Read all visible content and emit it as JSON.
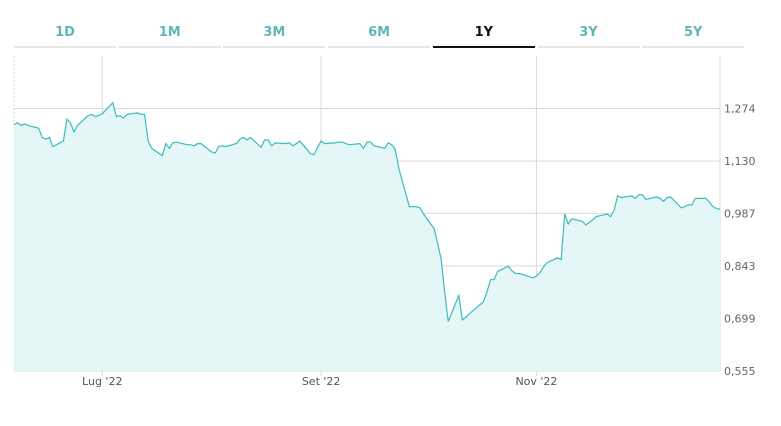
{
  "range_tabs": [
    {
      "label": "1D",
      "active": false
    },
    {
      "label": "1M",
      "active": false
    },
    {
      "label": "3M",
      "active": false
    },
    {
      "label": "6M",
      "active": false
    },
    {
      "label": "1Y",
      "active": true
    },
    {
      "label": "3Y",
      "active": false
    },
    {
      "label": "5Y",
      "active": false
    }
  ],
  "colors": {
    "tab_inactive_text": "#5fb6b6",
    "tab_active_text": "#111111",
    "tab_inactive_bar": "#e6e6e6",
    "tab_active_bar": "#111111",
    "line": "#3cbcbc",
    "fill": "#e4f7f6",
    "grid": "#d9d9d9"
  },
  "chart_data": {
    "type": "area",
    "title": "",
    "xlabel": "",
    "ylabel": "",
    "ylim": [
      0.555,
      1.418
    ],
    "y_ticks": [
      "1,274",
      "1,130",
      "0,987",
      "0,843",
      "0,699",
      "0,555"
    ],
    "y_tick_values": [
      1.274,
      1.13,
      0.987,
      0.843,
      0.699,
      0.555
    ],
    "x_ticks": [
      "Lug '22",
      "Set '22",
      "Nov '22"
    ],
    "x_tick_dates": [
      "2022-07-01",
      "2022-09-01",
      "2022-11-01"
    ],
    "x_range": [
      "2022-06-06",
      "2022-12-23"
    ],
    "grid": true,
    "series": [
      {
        "points": [
          [
            "2022-06-06",
            1.23
          ],
          [
            "2022-06-07",
            1.235
          ],
          [
            "2022-06-08",
            1.228
          ],
          [
            "2022-06-09",
            1.232
          ],
          [
            "2022-06-10",
            1.228
          ],
          [
            "2022-06-13",
            1.22
          ],
          [
            "2022-06-14",
            1.195
          ],
          [
            "2022-06-15",
            1.19
          ],
          [
            "2022-06-16",
            1.195
          ],
          [
            "2022-06-17",
            1.17
          ],
          [
            "2022-06-20",
            1.185
          ],
          [
            "2022-06-21",
            1.245
          ],
          [
            "2022-06-22",
            1.235
          ],
          [
            "2022-06-23",
            1.21
          ],
          [
            "2022-06-24",
            1.228
          ],
          [
            "2022-06-27",
            1.255
          ],
          [
            "2022-06-28",
            1.258
          ],
          [
            "2022-06-29",
            1.252
          ],
          [
            "2022-06-30",
            1.255
          ],
          [
            "2022-07-01",
            1.26
          ],
          [
            "2022-07-04",
            1.29
          ],
          [
            "2022-07-05",
            1.252
          ],
          [
            "2022-07-06",
            1.255
          ],
          [
            "2022-07-07",
            1.248
          ],
          [
            "2022-07-08",
            1.258
          ],
          [
            "2022-07-11",
            1.262
          ],
          [
            "2022-07-12",
            1.258
          ],
          [
            "2022-07-13",
            1.258
          ],
          [
            "2022-07-14",
            1.185
          ],
          [
            "2022-07-15",
            1.165
          ],
          [
            "2022-07-18",
            1.145
          ],
          [
            "2022-07-19",
            1.178
          ],
          [
            "2022-07-20",
            1.165
          ],
          [
            "2022-07-21",
            1.18
          ],
          [
            "2022-07-22",
            1.182
          ],
          [
            "2022-07-25",
            1.175
          ],
          [
            "2022-07-26",
            1.175
          ],
          [
            "2022-07-27",
            1.172
          ],
          [
            "2022-07-28",
            1.178
          ],
          [
            "2022-07-29",
            1.178
          ],
          [
            "2022-08-01",
            1.155
          ],
          [
            "2022-08-02",
            1.152
          ],
          [
            "2022-08-03",
            1.17
          ],
          [
            "2022-08-04",
            1.172
          ],
          [
            "2022-08-05",
            1.17
          ],
          [
            "2022-08-08",
            1.178
          ],
          [
            "2022-08-09",
            1.19
          ],
          [
            "2022-08-10",
            1.195
          ],
          [
            "2022-08-11",
            1.188
          ],
          [
            "2022-08-12",
            1.195
          ],
          [
            "2022-08-15",
            1.168
          ],
          [
            "2022-08-16",
            1.188
          ],
          [
            "2022-08-17",
            1.188
          ],
          [
            "2022-08-18",
            1.172
          ],
          [
            "2022-08-19",
            1.18
          ],
          [
            "2022-08-22",
            1.178
          ],
          [
            "2022-08-23",
            1.18
          ],
          [
            "2022-08-24",
            1.172
          ],
          [
            "2022-08-25",
            1.178
          ],
          [
            "2022-08-26",
            1.185
          ],
          [
            "2022-08-29",
            1.15
          ],
          [
            "2022-08-30",
            1.148
          ],
          [
            "2022-08-31",
            1.168
          ],
          [
            "2022-09-01",
            1.185
          ],
          [
            "2022-09-02",
            1.178
          ],
          [
            "2022-09-05",
            1.18
          ],
          [
            "2022-09-06",
            1.182
          ],
          [
            "2022-09-07",
            1.182
          ],
          [
            "2022-09-08",
            1.178
          ],
          [
            "2022-09-09",
            1.175
          ],
          [
            "2022-09-12",
            1.178
          ],
          [
            "2022-09-13",
            1.165
          ],
          [
            "2022-09-14",
            1.182
          ],
          [
            "2022-09-15",
            1.182
          ],
          [
            "2022-09-16",
            1.172
          ],
          [
            "2022-09-19",
            1.165
          ],
          [
            "2022-09-20",
            1.18
          ],
          [
            "2022-09-21",
            1.175
          ],
          [
            "2022-09-22",
            1.162
          ],
          [
            "2022-09-23",
            1.11
          ],
          [
            "2022-09-26",
            1.005
          ],
          [
            "2022-09-27",
            1.005
          ],
          [
            "2022-09-28",
            1.005
          ],
          [
            "2022-09-29",
            1.002
          ],
          [
            "2022-09-30",
            0.985
          ],
          [
            "2022-10-03",
            0.945
          ],
          [
            "2022-10-04",
            0.905
          ],
          [
            "2022-10-05",
            0.862
          ],
          [
            "2022-10-06",
            0.77
          ],
          [
            "2022-10-07",
            0.69
          ],
          [
            "2022-10-10",
            0.762
          ],
          [
            "2022-10-11",
            0.695
          ],
          [
            "2022-10-12",
            0.702
          ],
          [
            "2022-10-13",
            0.712
          ],
          [
            "2022-10-14",
            0.72
          ],
          [
            "2022-10-17",
            0.745
          ],
          [
            "2022-10-18",
            0.772
          ],
          [
            "2022-10-19",
            0.805
          ],
          [
            "2022-10-20",
            0.805
          ],
          [
            "2022-10-21",
            0.828
          ],
          [
            "2022-10-24",
            0.842
          ],
          [
            "2022-10-25",
            0.83
          ],
          [
            "2022-10-26",
            0.822
          ],
          [
            "2022-10-27",
            0.822
          ],
          [
            "2022-10-28",
            0.82
          ],
          [
            "2022-10-31",
            0.81
          ],
          [
            "2022-11-01",
            0.815
          ],
          [
            "2022-11-02",
            0.825
          ],
          [
            "2022-11-03",
            0.84
          ],
          [
            "2022-11-04",
            0.852
          ],
          [
            "2022-11-07",
            0.865
          ],
          [
            "2022-11-08",
            0.86
          ],
          [
            "2022-11-09",
            0.985
          ],
          [
            "2022-11-10",
            0.958
          ],
          [
            "2022-11-11",
            0.972
          ],
          [
            "2022-11-14",
            0.965
          ],
          [
            "2022-11-15",
            0.955
          ],
          [
            "2022-11-16",
            0.962
          ],
          [
            "2022-11-17",
            0.97
          ],
          [
            "2022-11-18",
            0.978
          ],
          [
            "2022-11-21",
            0.985
          ],
          [
            "2022-11-22",
            0.978
          ],
          [
            "2022-11-23",
            0.995
          ],
          [
            "2022-11-24",
            1.035
          ],
          [
            "2022-11-25",
            1.03
          ],
          [
            "2022-11-28",
            1.035
          ],
          [
            "2022-11-29",
            1.028
          ],
          [
            "2022-11-30",
            1.038
          ],
          [
            "2022-12-01",
            1.038
          ],
          [
            "2022-12-02",
            1.025
          ],
          [
            "2022-12-05",
            1.032
          ],
          [
            "2022-12-06",
            1.028
          ],
          [
            "2022-12-07",
            1.02
          ],
          [
            "2022-12-08",
            1.03
          ],
          [
            "2022-12-09",
            1.032
          ],
          [
            "2022-12-12",
            1.002
          ],
          [
            "2022-12-13",
            1.005
          ],
          [
            "2022-12-14",
            1.01
          ],
          [
            "2022-12-15",
            1.01
          ],
          [
            "2022-12-16",
            1.028
          ],
          [
            "2022-12-19",
            1.028
          ],
          [
            "2022-12-20",
            1.018
          ],
          [
            "2022-12-21",
            1.005
          ],
          [
            "2022-12-22",
            1.0
          ],
          [
            "2022-12-23",
            0.998
          ]
        ]
      }
    ]
  }
}
